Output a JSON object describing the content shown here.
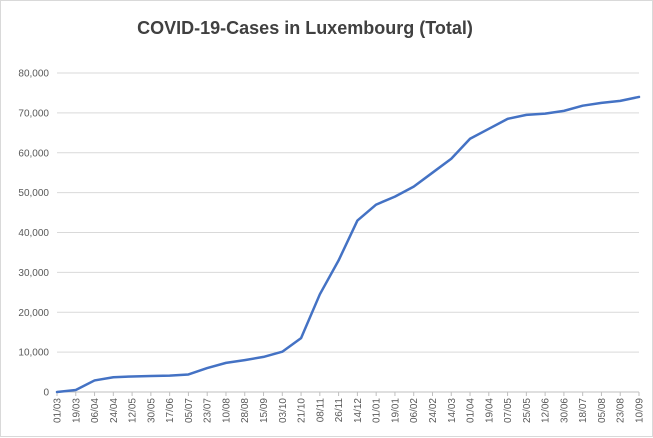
{
  "chart_data": {
    "type": "line",
    "title": "COVID-19-Cases in Luxembourg (Total)",
    "xlabel": "",
    "ylabel": "",
    "ylim": [
      0,
      80000
    ],
    "yticks": [
      "0",
      "10,000",
      "20,000",
      "30,000",
      "40,000",
      "50,000",
      "60,000",
      "70,000",
      "80,000"
    ],
    "categories": [
      "01/03",
      "19/03",
      "06/04",
      "24/04",
      "12/05",
      "30/05",
      "17/06",
      "05/07",
      "23/07",
      "10/08",
      "28/08",
      "15/09",
      "03/10",
      "21/10",
      "08/11",
      "26/11",
      "14/12",
      "01/01",
      "19/01",
      "06/02",
      "24/02",
      "14/03",
      "01/04",
      "19/04",
      "07/05",
      "25/05",
      "12/06",
      "30/06",
      "18/07",
      "05/08",
      "23/08",
      "10/09"
    ],
    "grid": true,
    "legend": "none",
    "line_color": "#4472c4",
    "series": [
      {
        "values": [
          0,
          500,
          2900,
          3700,
          3900,
          4000,
          4100,
          4400,
          6000,
          7300,
          8000,
          8800,
          10100,
          13500,
          24500,
          33000,
          43000,
          47000,
          49000,
          51500,
          55000,
          58500,
          63500,
          66000,
          68500,
          69500,
          69800,
          70500,
          71800,
          72500,
          73000,
          74000
        ]
      }
    ]
  }
}
